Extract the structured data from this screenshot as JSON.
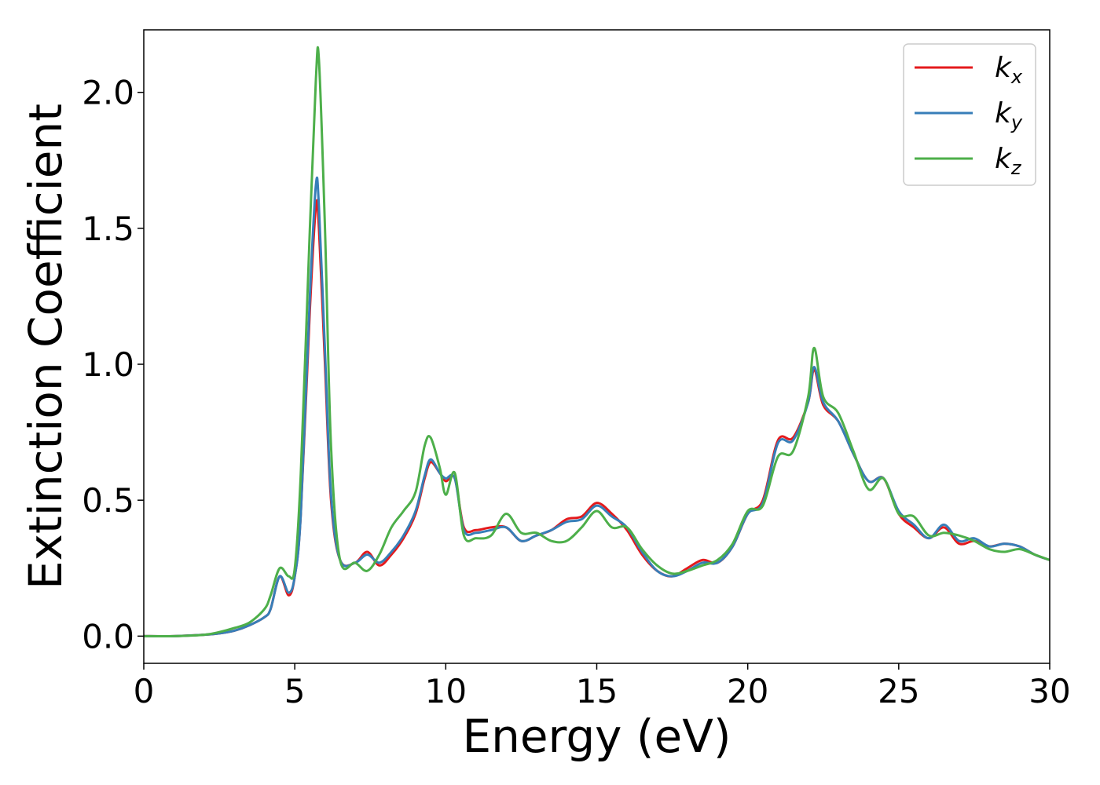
{
  "chart_data": {
    "type": "line",
    "xlabel": "Energy (eV)",
    "ylabel": "Extinction Coefficient",
    "xlim": [
      0,
      30
    ],
    "ylim": [
      -0.1,
      2.23
    ],
    "xticks": [
      "0",
      "5",
      "10",
      "15",
      "20",
      "25",
      "30"
    ],
    "xtick_values": [
      0,
      5,
      10,
      15,
      20,
      25,
      30
    ],
    "yticks": [
      "0.0",
      "0.5",
      "1.0",
      "1.5",
      "2.0"
    ],
    "ytick_values": [
      0.0,
      0.5,
      1.0,
      1.5,
      2.0
    ],
    "grid": false,
    "legend_position": "top-right",
    "x": [
      0,
      1,
      2,
      2.5,
      3,
      3.5,
      4,
      4.2,
      4.5,
      4.8,
      5,
      5.2,
      5.5,
      5.7,
      5.8,
      6,
      6.2,
      6.5,
      7,
      7.4,
      7.8,
      8.2,
      8.6,
      9,
      9.3,
      9.5,
      9.8,
      10,
      10.3,
      10.6,
      11,
      11.5,
      12,
      12.5,
      13,
      13.5,
      14,
      14.5,
      15,
      15.5,
      16,
      16.5,
      17,
      17.5,
      18,
      18.5,
      19,
      19.5,
      20,
      20.5,
      21,
      21.5,
      22,
      22.2,
      22.5,
      23,
      23.5,
      24,
      24.5,
      25,
      25.5,
      26,
      26.5,
      27,
      27.5,
      28,
      28.5,
      29,
      29.5,
      30
    ],
    "series": [
      {
        "name": "k_x",
        "label_base": "k",
        "label_sub": "x",
        "color": "#e41a1c",
        "values": [
          0,
          0,
          0.005,
          0.01,
          0.02,
          0.04,
          0.07,
          0.1,
          0.22,
          0.15,
          0.22,
          0.45,
          1.2,
          1.58,
          1.5,
          1.0,
          0.5,
          0.28,
          0.27,
          0.31,
          0.26,
          0.3,
          0.36,
          0.45,
          0.58,
          0.64,
          0.6,
          0.57,
          0.58,
          0.4,
          0.39,
          0.4,
          0.4,
          0.35,
          0.37,
          0.39,
          0.43,
          0.44,
          0.49,
          0.45,
          0.39,
          0.3,
          0.24,
          0.22,
          0.25,
          0.28,
          0.27,
          0.33,
          0.45,
          0.5,
          0.72,
          0.73,
          0.86,
          0.98,
          0.85,
          0.79,
          0.67,
          0.57,
          0.58,
          0.45,
          0.4,
          0.36,
          0.4,
          0.34,
          0.35,
          0.33,
          0.34,
          0.33,
          0.3,
          0.28
        ]
      },
      {
        "name": "k_y",
        "label_base": "k",
        "label_sub": "y",
        "color": "#377eb8",
        "values": [
          0,
          0,
          0.005,
          0.01,
          0.02,
          0.04,
          0.07,
          0.1,
          0.22,
          0.16,
          0.22,
          0.45,
          1.25,
          1.66,
          1.58,
          1.05,
          0.52,
          0.28,
          0.27,
          0.3,
          0.27,
          0.31,
          0.37,
          0.46,
          0.59,
          0.65,
          0.6,
          0.58,
          0.58,
          0.39,
          0.38,
          0.39,
          0.4,
          0.35,
          0.37,
          0.39,
          0.42,
          0.43,
          0.48,
          0.44,
          0.4,
          0.31,
          0.24,
          0.22,
          0.24,
          0.27,
          0.27,
          0.33,
          0.45,
          0.49,
          0.71,
          0.72,
          0.86,
          0.99,
          0.86,
          0.79,
          0.67,
          0.57,
          0.58,
          0.46,
          0.41,
          0.36,
          0.41,
          0.35,
          0.36,
          0.33,
          0.34,
          0.33,
          0.3,
          0.28
        ]
      },
      {
        "name": "k_z",
        "label_base": "k",
        "label_sub": "z",
        "color": "#4daf4a",
        "values": [
          0,
          0,
          0.005,
          0.015,
          0.03,
          0.05,
          0.1,
          0.15,
          0.25,
          0.22,
          0.25,
          0.6,
          1.5,
          2.05,
          2.12,
          1.5,
          0.7,
          0.28,
          0.27,
          0.24,
          0.3,
          0.4,
          0.46,
          0.53,
          0.7,
          0.73,
          0.62,
          0.52,
          0.6,
          0.37,
          0.36,
          0.37,
          0.45,
          0.38,
          0.38,
          0.35,
          0.35,
          0.4,
          0.46,
          0.4,
          0.4,
          0.32,
          0.26,
          0.23,
          0.24,
          0.26,
          0.28,
          0.34,
          0.46,
          0.48,
          0.66,
          0.68,
          0.88,
          1.06,
          0.88,
          0.82,
          0.68,
          0.54,
          0.58,
          0.45,
          0.44,
          0.37,
          0.38,
          0.37,
          0.35,
          0.32,
          0.31,
          0.32,
          0.3,
          0.28
        ]
      }
    ]
  }
}
